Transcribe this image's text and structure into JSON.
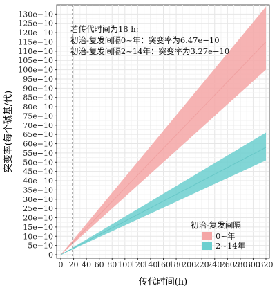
{
  "chart_data": {
    "type": "area",
    "xlabel": "传代时间(h)",
    "ylabel": "突变率(每个碱基/代)",
    "xlim": [
      0,
      320
    ],
    "ylim": [
      0,
      1.35e-08
    ],
    "x_ticks": [
      0,
      20,
      40,
      60,
      80,
      100,
      120,
      140,
      160,
      180,
      200,
      220,
      240,
      260,
      280,
      300,
      320
    ],
    "x_tick_labels": [
      "0",
      "20",
      "40",
      "60",
      "80",
      "100",
      "120",
      "140",
      "160",
      "180",
      "200",
      "220",
      "240",
      "260",
      "280",
      "300",
      "320"
    ],
    "y_ticks": [
      0,
      5e-10,
      1e-09,
      1.5e-09,
      2e-09,
      2.5e-09,
      3e-09,
      3.5e-09,
      4e-09,
      4.5e-09,
      5e-09,
      5.5e-09,
      6e-09,
      6.5e-09,
      7e-09,
      7.5e-09,
      8e-09,
      8.5e-09,
      9e-09,
      9.5e-09,
      1e-08,
      1.05e-08,
      1.1e-08,
      1.15e-08,
      1.2e-08,
      1.25e-08,
      1.3e-08
    ],
    "y_tick_labels": [
      "0",
      "5e−10",
      "10e−10",
      "15e−10",
      "20e−10",
      "25e−10",
      "30e−10",
      "35e−10",
      "40e−10",
      "45e−10",
      "50e−10",
      "55e−10",
      "60e−10",
      "65e−10",
      "70e−10",
      "75e−10",
      "80e−10",
      "85e−10",
      "90e−10",
      "95e−10",
      "100e−10",
      "105e−10",
      "110e−10",
      "115e−10",
      "120e−10",
      "125e−10",
      "130e−10"
    ],
    "grid": true,
    "legend_position": "bottom-right",
    "legend_title": "初治-复发间隔",
    "vline": {
      "x": 18,
      "style": "dashed"
    },
    "annotations": [
      "若传代时间为18 h:",
      "初治-复发间隔0~年：突变率为6.47e−10",
      "初治-复发间隔2~14年：突变率为3.27e−10"
    ],
    "series": [
      {
        "name": "0~年",
        "color": "#f4a6a6",
        "line_color": "#ee9a9a",
        "x": [
          0,
          320
        ],
        "y": [
          0,
          1.15e-08
        ],
        "y_lower": [
          0,
          1e-08
        ],
        "y_upper": [
          0,
          1.34e-08
        ]
      },
      {
        "name": "2~14年",
        "color": "#6ccfcf",
        "line_color": "#5cc2c2",
        "x": [
          0,
          320
        ],
        "y": [
          0,
          5.8e-09
        ],
        "y_lower": [
          0,
          5.1e-09
        ],
        "y_upper": [
          0,
          6.6e-09
        ]
      }
    ]
  }
}
